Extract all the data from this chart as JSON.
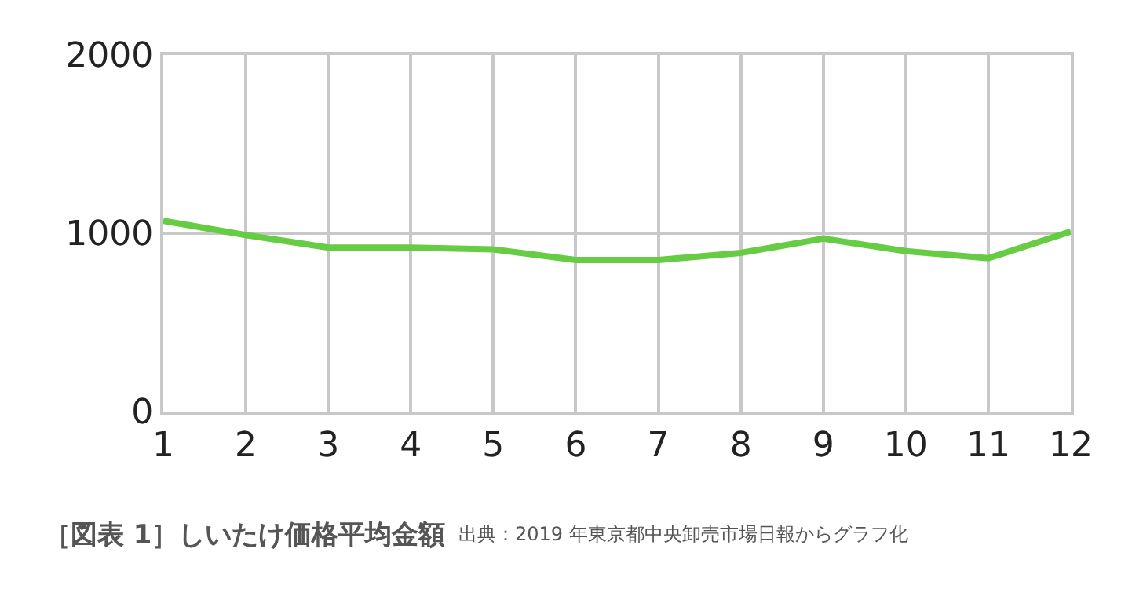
{
  "chart_data": {
    "type": "line",
    "title": "［図表 1］しいたけ価格平均金額",
    "annotations": [
      "出典：2019 年東京都中央卸売市場日報からグラフ化"
    ],
    "x": [
      1,
      2,
      3,
      4,
      5,
      6,
      7,
      8,
      9,
      10,
      11,
      12
    ],
    "series": [
      {
        "color": "#66cc44",
        "values": [
          1070,
          990,
          920,
          920,
          910,
          850,
          850,
          890,
          970,
          900,
          860,
          1010
        ]
      }
    ],
    "xlim": [
      1,
      12
    ],
    "xticks": [
      1,
      2,
      3,
      4,
      5,
      6,
      7,
      8,
      9,
      10,
      11,
      12
    ],
    "ylim": [
      0,
      2000
    ],
    "yticks": [
      0,
      1000,
      2000
    ],
    "grid": true,
    "marker": "none",
    "line_style": "solid"
  }
}
